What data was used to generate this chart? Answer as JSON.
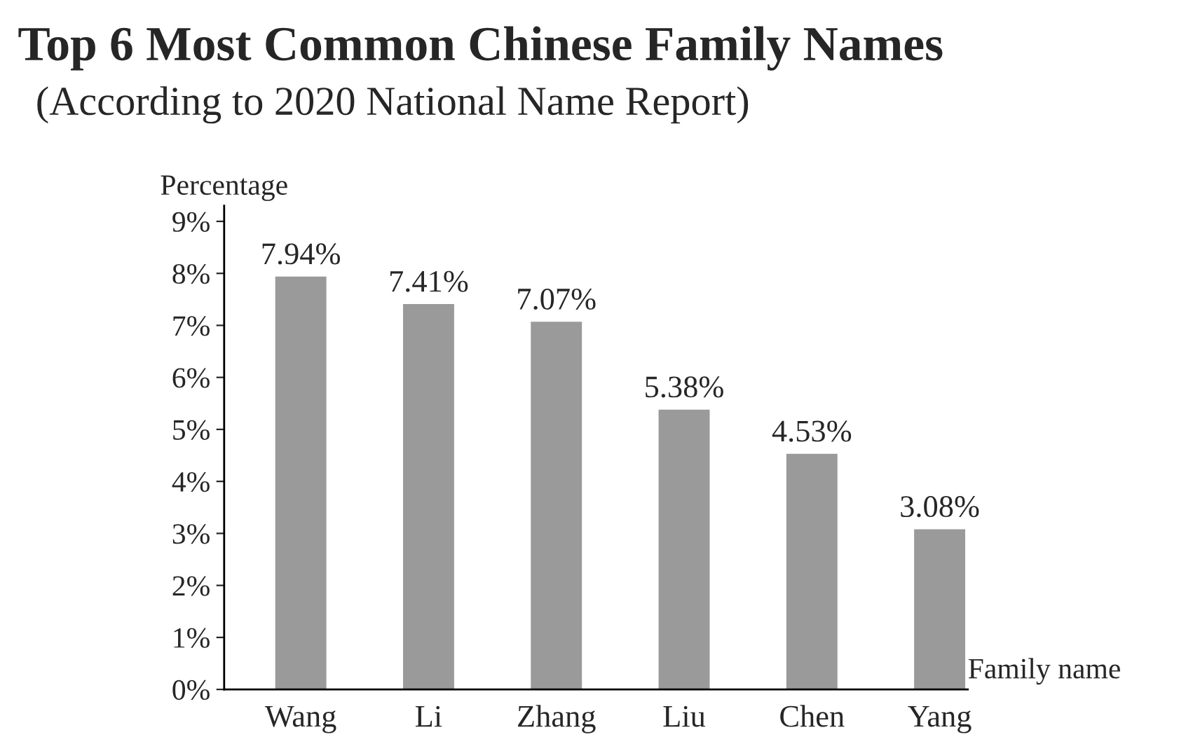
{
  "chart_data": {
    "type": "bar",
    "title": "Top 6 Most Common Chinese Family Names",
    "subtitle": "(According to 2020 National Name Report)",
    "xlabel": "Family name",
    "ylabel": "Percentage",
    "categories": [
      "Wang",
      "Li",
      "Zhang",
      "Liu",
      "Chen",
      "Yang"
    ],
    "values": [
      7.94,
      7.41,
      7.07,
      5.38,
      4.53,
      3.08
    ],
    "value_labels": [
      "7.94%",
      "7.41%",
      "7.07%",
      "5.38%",
      "4.53%",
      "3.08%"
    ],
    "color": "#9a9a9a",
    "ylim": [
      0,
      9.3
    ],
    "yticks": [
      {
        "value": 0,
        "label": "0%"
      },
      {
        "value": 1,
        "label": "1%"
      },
      {
        "value": 2,
        "label": "2%"
      },
      {
        "value": 3,
        "label": "3%"
      },
      {
        "value": 4,
        "label": "4%"
      },
      {
        "value": 5,
        "label": "5%"
      },
      {
        "value": 6,
        "label": "6%"
      },
      {
        "value": 7,
        "label": "7%"
      },
      {
        "value": 8,
        "label": "8%"
      },
      {
        "value": 9,
        "label": "9%"
      }
    ],
    "grid": false,
    "legend": false
  }
}
